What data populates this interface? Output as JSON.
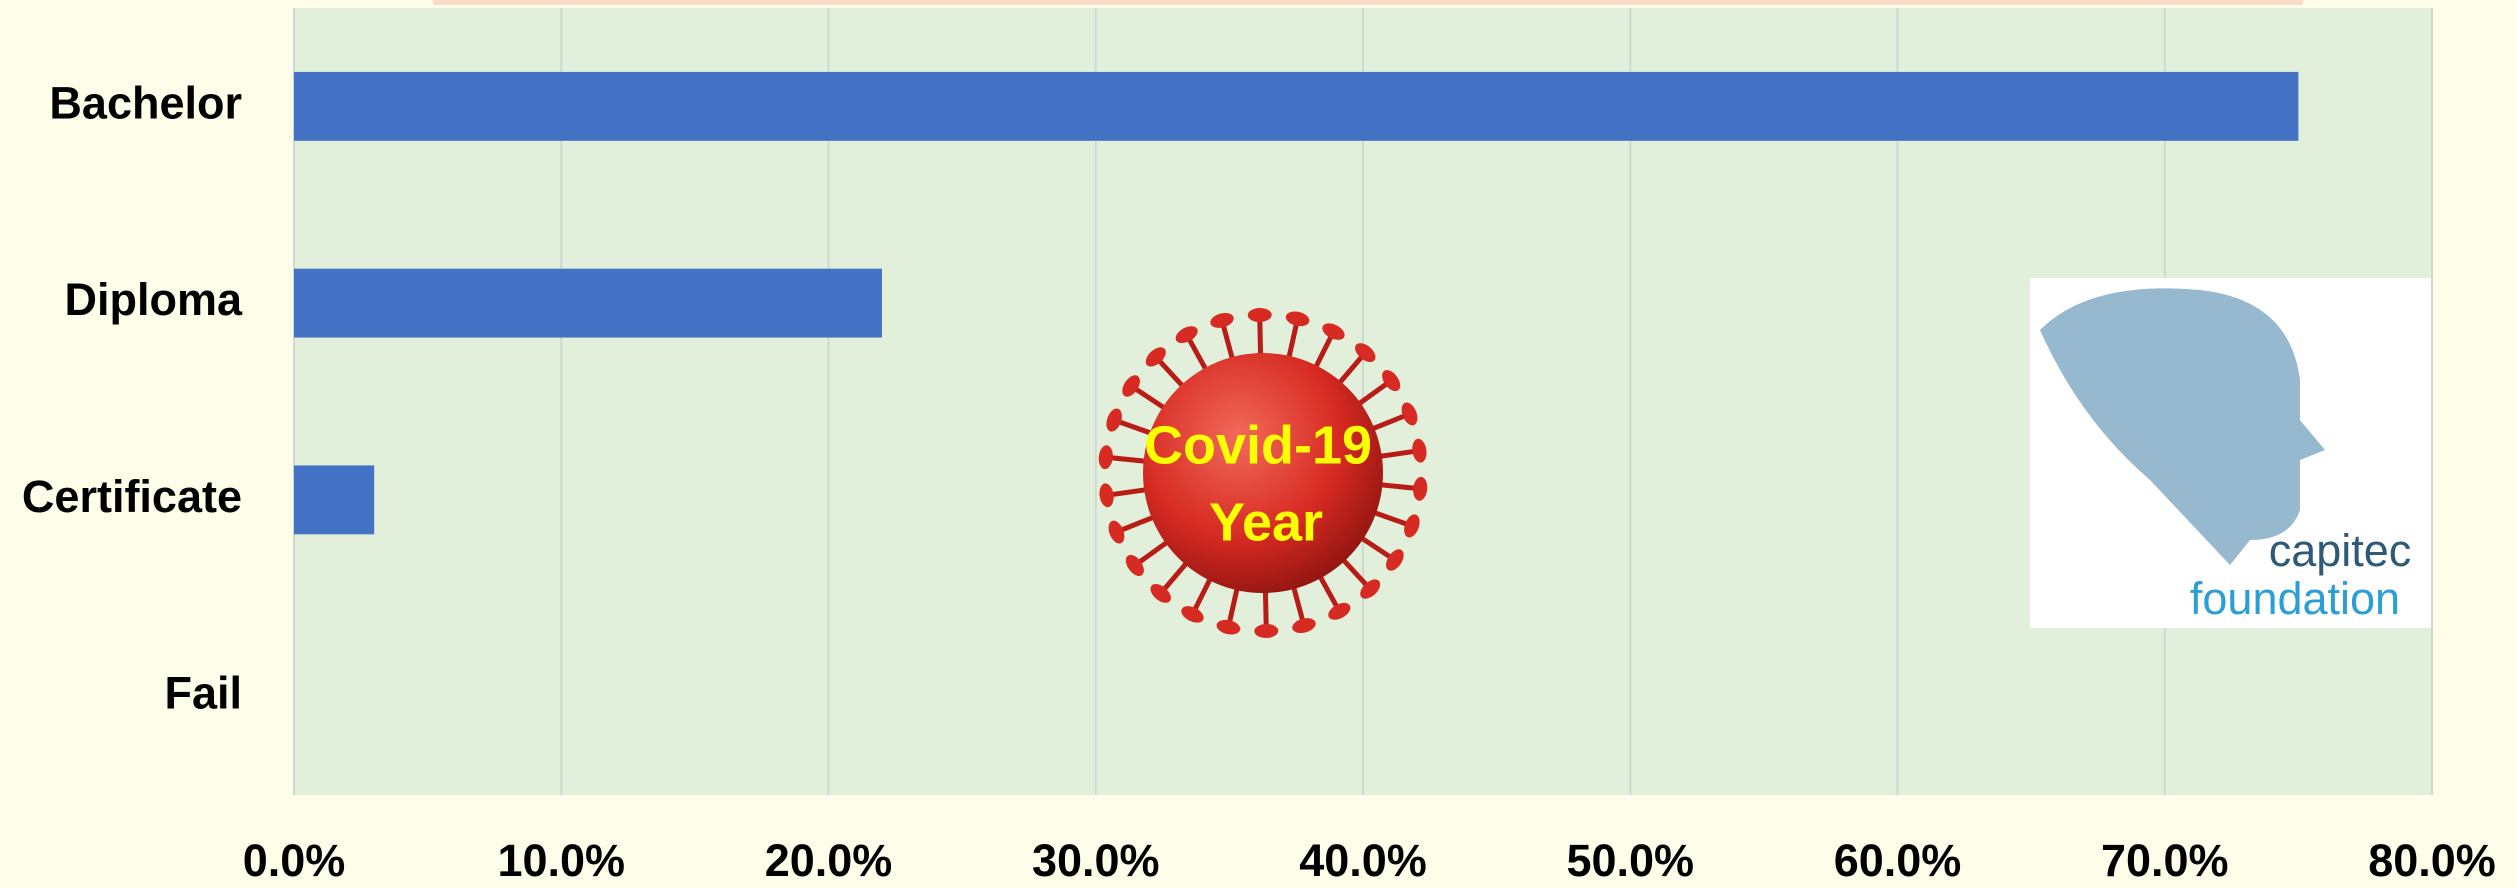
{
  "chart_data": {
    "type": "barh",
    "categories": [
      "Bachelor",
      "Diploma",
      "Certificate",
      "Fail"
    ],
    "values": [
      75,
      22,
      3,
      0
    ],
    "color": "#4472c4",
    "xlim": [
      0,
      80
    ],
    "xticks": [
      {
        "value": 0,
        "label": "0.0%"
      },
      {
        "value": 10,
        "label": "10.0%"
      },
      {
        "value": 20,
        "label": "20.0%"
      },
      {
        "value": 30,
        "label": "30.0%"
      },
      {
        "value": 40,
        "label": "40.0%"
      },
      {
        "value": 50,
        "label": "50.0%"
      },
      {
        "value": 60,
        "label": "60.0%"
      },
      {
        "value": 70,
        "label": "70.0%"
      },
      {
        "value": 80,
        "label": "80.0%"
      }
    ],
    "grid": true,
    "annotations": {
      "covid": [
        "Covid-19",
        "Year"
      ],
      "logo": [
        "capitec",
        "foundation"
      ]
    }
  }
}
